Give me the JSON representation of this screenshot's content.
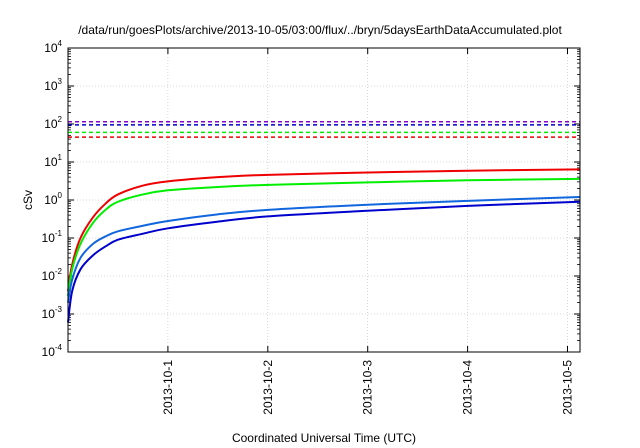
{
  "chart_data": {
    "type": "line",
    "title": "/data/run/goesPlots/archive/2013-10-05/03:00/flux/../bryn/5daysEarthDataAccumulated.plot",
    "xlabel": "Coordinated Universal Time (UTC)",
    "ylabel": "cSv",
    "y_scale": "log",
    "ylim": [
      0.0001,
      10000
    ],
    "xlim": [
      "2013-09-30 00:00",
      "2013-10-05 03:00"
    ],
    "y_ticks": [
      {
        "base": "10",
        "exp": "-4",
        "value": 0.0001
      },
      {
        "base": "10",
        "exp": "-3",
        "value": 0.001
      },
      {
        "base": "10",
        "exp": "-2",
        "value": 0.01
      },
      {
        "base": "10",
        "exp": "-1",
        "value": 0.1
      },
      {
        "base": "10",
        "exp": "0",
        "value": 1
      },
      {
        "base": "10",
        "exp": "1",
        "value": 10
      },
      {
        "base": "10",
        "exp": "2",
        "value": 100
      },
      {
        "base": "10",
        "exp": "3",
        "value": 1000
      },
      {
        "base": "10",
        "exp": "4",
        "value": 10000
      }
    ],
    "x_ticks": [
      {
        "label": "2013-10-1",
        "value": "2013-10-01 00:00"
      },
      {
        "label": "2013-10-2",
        "value": "2013-10-02 00:00"
      },
      {
        "label": "2013-10-3",
        "value": "2013-10-03 00:00"
      },
      {
        "label": "2013-10-4",
        "value": "2013-10-04 00:00"
      },
      {
        "label": "2013-10-5",
        "value": "2013-10-05 00:00"
      }
    ],
    "grid": true,
    "series": [
      {
        "color": "#ee0000",
        "style": "solid",
        "x": [
          "2013-09-30 00:00",
          "2013-09-30 01:00",
          "2013-09-30 03:00",
          "2013-09-30 06:00",
          "2013-09-30 09:00",
          "2013-09-30 12:00",
          "2013-09-30 18:00",
          "2013-10-01 00:00",
          "2013-10-01 12:00",
          "2013-10-02 00:00",
          "2013-10-03 00:00",
          "2013-10-04 00:00",
          "2013-10-05 03:00"
        ],
        "values": [
          0.004,
          0.02,
          0.1,
          0.35,
          0.8,
          1.4,
          2.4,
          3.1,
          4.0,
          4.6,
          5.3,
          5.9,
          6.4
        ]
      },
      {
        "color": "#00ee00",
        "style": "solid",
        "x": [
          "2013-09-30 00:00",
          "2013-09-30 01:00",
          "2013-09-30 03:00",
          "2013-09-30 06:00",
          "2013-09-30 09:00",
          "2013-09-30 12:00",
          "2013-09-30 18:00",
          "2013-10-01 00:00",
          "2013-10-01 12:00",
          "2013-10-02 00:00",
          "2013-10-03 00:00",
          "2013-10-04 00:00",
          "2013-10-05 03:00"
        ],
        "values": [
          0.003,
          0.015,
          0.07,
          0.25,
          0.55,
          0.9,
          1.4,
          1.8,
          2.2,
          2.5,
          2.9,
          3.3,
          3.6
        ]
      },
      {
        "color": "#1166dd",
        "style": "solid",
        "x": [
          "2013-09-30 00:00",
          "2013-09-30 01:00",
          "2013-09-30 03:00",
          "2013-09-30 06:00",
          "2013-09-30 09:00",
          "2013-09-30 12:00",
          "2013-09-30 18:00",
          "2013-10-01 00:00",
          "2013-10-01 12:00",
          "2013-10-02 00:00",
          "2013-10-03 00:00",
          "2013-10-04 00:00",
          "2013-10-05 03:00"
        ],
        "values": [
          0.002,
          0.008,
          0.03,
          0.07,
          0.11,
          0.15,
          0.21,
          0.28,
          0.42,
          0.55,
          0.75,
          0.95,
          1.2
        ]
      },
      {
        "color": "#0000cc",
        "style": "solid",
        "x": [
          "2013-09-30 00:00",
          "2013-09-30 01:00",
          "2013-09-30 03:00",
          "2013-09-30 06:00",
          "2013-09-30 09:00",
          "2013-09-30 12:00",
          "2013-09-30 18:00",
          "2013-10-01 00:00",
          "2013-10-01 12:00",
          "2013-10-02 00:00",
          "2013-10-03 00:00",
          "2013-10-04 00:00",
          "2013-10-05 03:00"
        ],
        "values": [
          0.0006,
          0.004,
          0.015,
          0.035,
          0.06,
          0.09,
          0.13,
          0.18,
          0.27,
          0.37,
          0.52,
          0.7,
          0.9
        ]
      }
    ],
    "thresholds": [
      {
        "color": "#ee0000",
        "style": "dashed",
        "value": 45
      },
      {
        "color": "#00ee00",
        "style": "dashed",
        "value": 60
      },
      {
        "color": "#0000cc",
        "style": "dashed",
        "value": 95
      },
      {
        "color": "#8800cc",
        "style": "dashed",
        "value": 115
      }
    ]
  }
}
